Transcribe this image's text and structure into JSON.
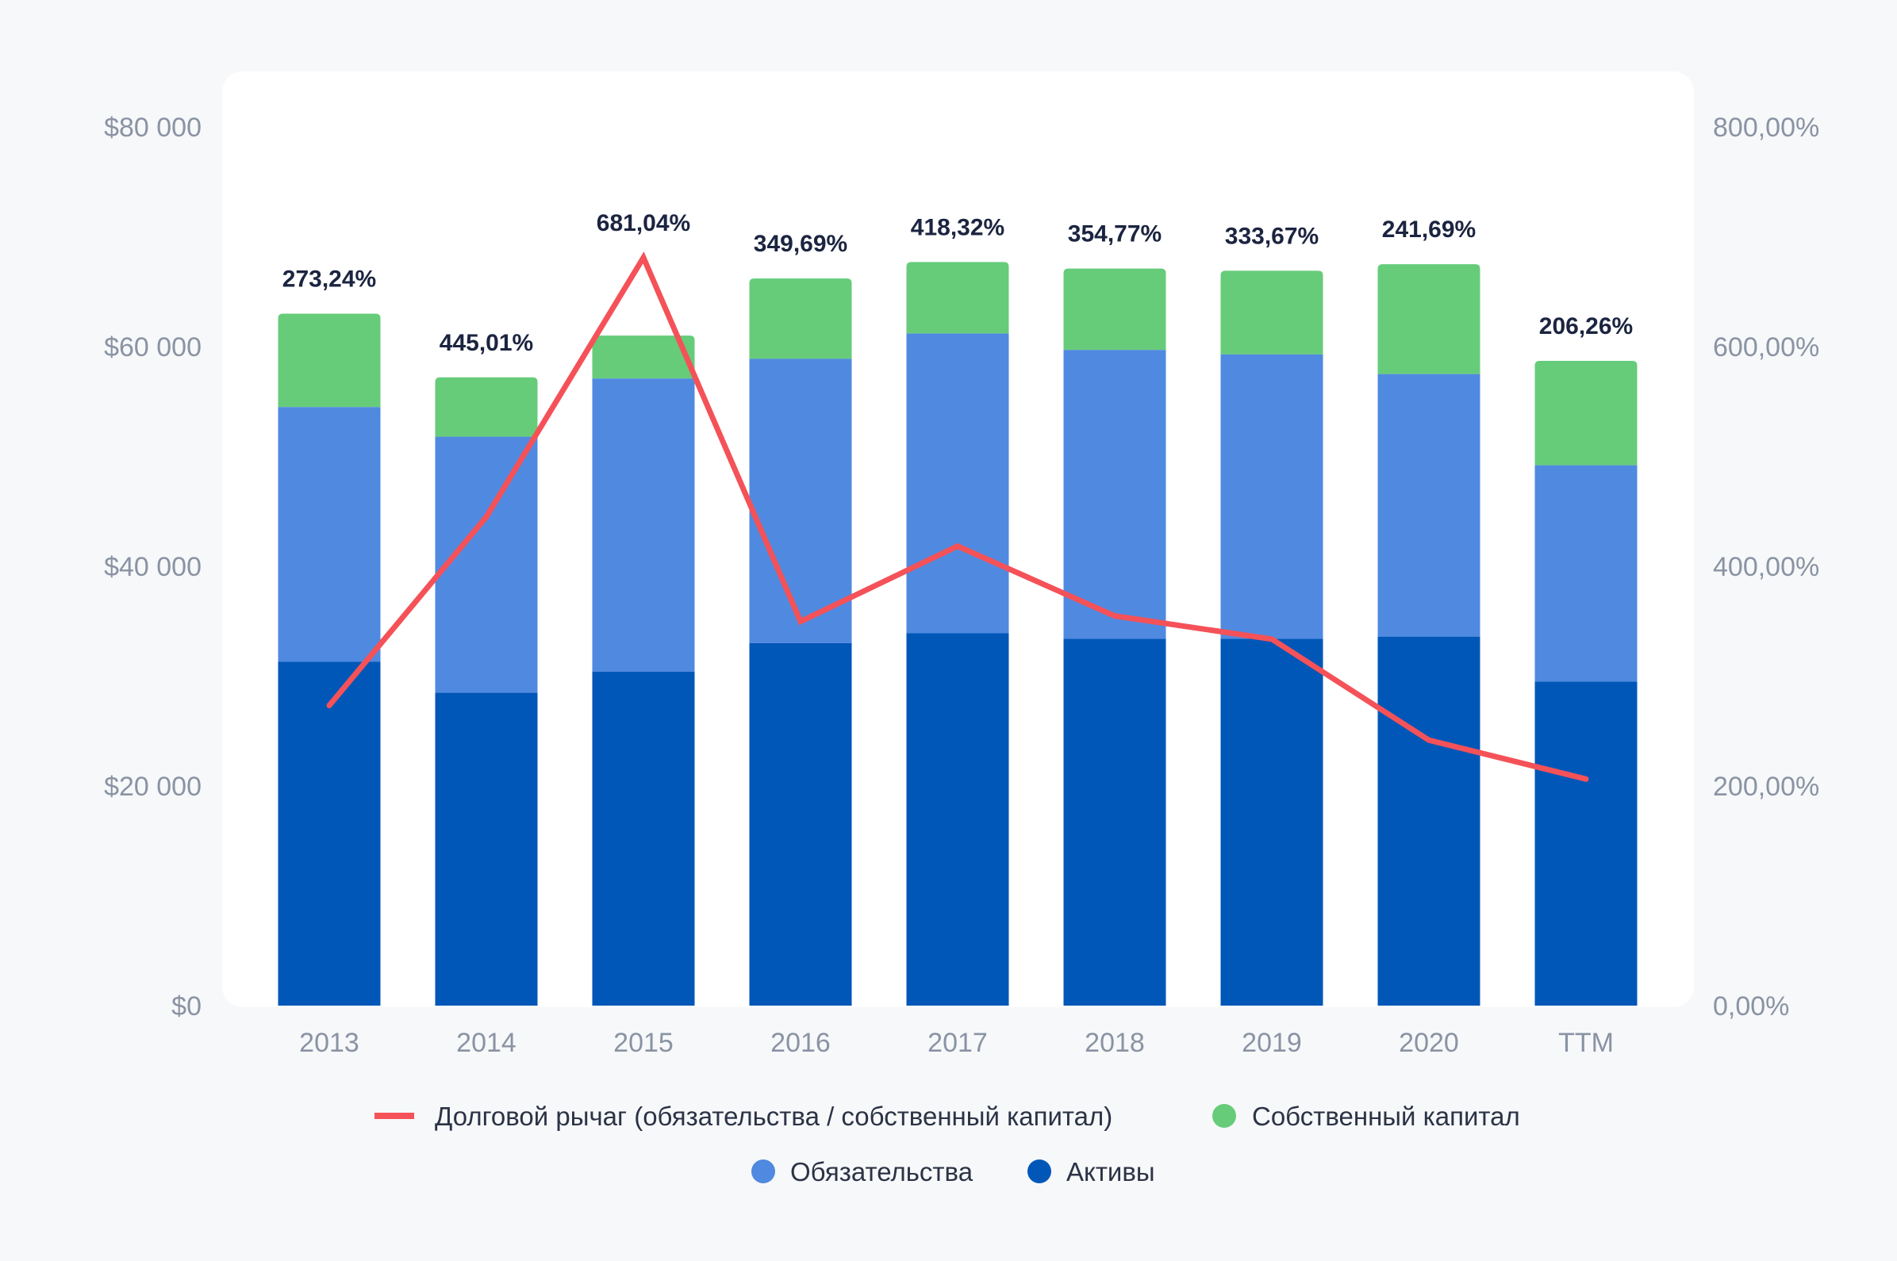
{
  "chart_data": {
    "type": "bar",
    "stacked": true,
    "categories": [
      "2013",
      "2014",
      "2015",
      "2016",
      "2017",
      "2018",
      "2019",
      "2020",
      "TTM"
    ],
    "series": [
      {
        "name": "Активы",
        "color": "#0057b8",
        "axis": "left",
        "values": [
          31300,
          28500,
          30400,
          33000,
          33900,
          33400,
          33400,
          33600,
          29500
        ]
      },
      {
        "name": "Обязательства",
        "color": "#5089e0",
        "axis": "left",
        "values": [
          23200,
          23300,
          26700,
          25900,
          27300,
          26300,
          25900,
          23900,
          19700
        ]
      },
      {
        "name": "Собственный капитал",
        "color": "#66cc7a",
        "axis": "left",
        "values": [
          8500,
          5400,
          3900,
          7300,
          6500,
          7400,
          7600,
          10000,
          9500
        ]
      }
    ],
    "line": {
      "name": "Долговой рычаг (обязательства / собственный капитал)",
      "color": "#f45258",
      "axis": "right",
      "values": [
        273.24,
        445.01,
        681.04,
        349.69,
        418.32,
        354.77,
        333.67,
        241.69,
        206.26
      ]
    },
    "data_labels": [
      "273,24%",
      "445,01%",
      "681,04%",
      "349,69%",
      "418,32%",
      "354,77%",
      "333,67%",
      "241,69%",
      "206,26%"
    ],
    "y_left": {
      "ylim": [
        0,
        80000
      ],
      "ticks": [
        0,
        20000,
        40000,
        60000,
        80000
      ],
      "tick_labels": [
        "$0",
        "$20 000",
        "$40 000",
        "$60 000",
        "$80 000"
      ]
    },
    "y_right": {
      "ylim": [
        0,
        800
      ],
      "ticks": [
        0,
        200,
        400,
        600,
        800
      ],
      "tick_labels": [
        "0,00%",
        "200,00%",
        "400,00%",
        "600,00%",
        "800,00%"
      ]
    },
    "legend": {
      "position": "bottom",
      "row1": [
        "Долговой рычаг (обязательства / собственный капитал)",
        "Собственный капитал"
      ],
      "row2": [
        "Обязательства",
        "Активы"
      ]
    },
    "grid": false
  }
}
